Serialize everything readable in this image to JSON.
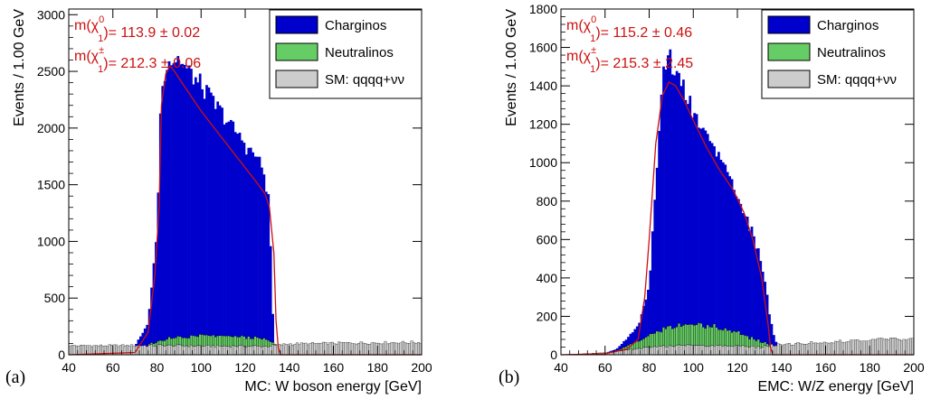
{
  "chart_data": [
    {
      "type": "histogram",
      "panel_label": "(a)",
      "xlabel": "MC: W boson energy [GeV]",
      "ylabel": "Events / 1.00 GeV",
      "xlim": [
        40,
        200
      ],
      "ylim": [
        0,
        3050
      ],
      "xticks": [
        40,
        60,
        80,
        100,
        120,
        140,
        160,
        180,
        200
      ],
      "yticks": [
        0,
        500,
        1000,
        1500,
        2000,
        2500,
        3000
      ],
      "legend_position": "top-right",
      "legend": [
        {
          "label": "Charginos",
          "color": "#0000cc"
        },
        {
          "label": "Neutralinos",
          "color": "#66cc66"
        },
        {
          "label": "SM: qqqq+νν",
          "color": "#cccccc"
        }
      ],
      "annotations": [
        {
          "prefix": "m(",
          "tilde": "χ",
          "sup": "0",
          "sub": "1",
          "value": ")= 113.9 ± 0.02"
        },
        {
          "prefix": "m(",
          "tilde": "χ",
          "sup": "±",
          "sub": "1",
          "value": ")= 212.3 ± 0.06"
        }
      ],
      "sm_profile": [
        [
          40,
          80
        ],
        [
          80,
          82
        ],
        [
          100,
          78
        ],
        [
          130,
          75
        ],
        [
          140,
          95
        ],
        [
          170,
          105
        ],
        [
          200,
          110
        ]
      ],
      "neutralino_profile": [
        [
          75,
          0
        ],
        [
          85,
          60
        ],
        [
          100,
          90
        ],
        [
          120,
          80
        ],
        [
          130,
          60
        ],
        [
          134,
          0
        ]
      ],
      "chargino_profile": [
        [
          70,
          0
        ],
        [
          76,
          200
        ],
        [
          80,
          1000
        ],
        [
          82,
          2300
        ],
        [
          85,
          2450
        ],
        [
          90,
          2450
        ],
        [
          100,
          2200
        ],
        [
          110,
          1950
        ],
        [
          120,
          1700
        ],
        [
          125,
          1600
        ],
        [
          128,
          1500
        ],
        [
          131,
          1200
        ],
        [
          132,
          500
        ],
        [
          133,
          0
        ]
      ],
      "fit_curve": [
        [
          40,
          0
        ],
        [
          70,
          20
        ],
        [
          76,
          200
        ],
        [
          79,
          700
        ],
        [
          81,
          1300
        ],
        [
          82,
          2200
        ],
        [
          84,
          2480
        ],
        [
          86,
          2550
        ],
        [
          88,
          2500
        ],
        [
          92,
          2380
        ],
        [
          100,
          2150
        ],
        [
          110,
          1900
        ],
        [
          120,
          1650
        ],
        [
          126,
          1500
        ],
        [
          129,
          1420
        ],
        [
          131,
          1300
        ],
        [
          133,
          900
        ],
        [
          134,
          300
        ],
        [
          135,
          60
        ],
        [
          136,
          0
        ],
        [
          200,
          0
        ]
      ]
    },
    {
      "type": "histogram",
      "panel_label": "(b)",
      "xlabel": "EMC: W/Z energy [GeV]",
      "ylabel": "Events / 1.00 GeV",
      "xlim": [
        40,
        200
      ],
      "ylim": [
        0,
        1800
      ],
      "xticks": [
        40,
        60,
        80,
        100,
        120,
        140,
        160,
        180,
        200
      ],
      "yticks": [
        0,
        200,
        400,
        600,
        800,
        1000,
        1200,
        1400,
        1600,
        1800
      ],
      "legend_position": "top-right",
      "legend": [
        {
          "label": "Charginos",
          "color": "#0000cc"
        },
        {
          "label": "Neutralinos",
          "color": "#66cc66"
        },
        {
          "label": "SM: qqqq+νν",
          "color": "#cccccc"
        }
      ],
      "annotations": [
        {
          "prefix": "m(",
          "tilde": "χ",
          "sup": "0",
          "sub": "1",
          "value": ")= 115.2 ± 0.46"
        },
        {
          "prefix": "m(",
          "tilde": "χ",
          "sup": "±",
          "sub": "1",
          "value": ")= 215.3 ± 2.45"
        }
      ],
      "sm_profile": [
        [
          40,
          0
        ],
        [
          60,
          10
        ],
        [
          70,
          25
        ],
        [
          80,
          40
        ],
        [
          100,
          50
        ],
        [
          120,
          45
        ],
        [
          130,
          40
        ],
        [
          140,
          55
        ],
        [
          160,
          65
        ],
        [
          180,
          80
        ],
        [
          200,
          80
        ]
      ],
      "neutralino_profile": [
        [
          65,
          0
        ],
        [
          80,
          60
        ],
        [
          90,
          100
        ],
        [
          100,
          110
        ],
        [
          110,
          100
        ],
        [
          120,
          70
        ],
        [
          130,
          30
        ],
        [
          136,
          0
        ]
      ],
      "chargino_profile": [
        [
          60,
          0
        ],
        [
          65,
          10
        ],
        [
          70,
          40
        ],
        [
          75,
          80
        ],
        [
          80,
          250
        ],
        [
          83,
          800
        ],
        [
          86,
          1300
        ],
        [
          88,
          1400
        ],
        [
          90,
          1380
        ],
        [
          95,
          1250
        ],
        [
          100,
          1100
        ],
        [
          105,
          1000
        ],
        [
          110,
          920
        ],
        [
          115,
          850
        ],
        [
          120,
          720
        ],
        [
          125,
          600
        ],
        [
          130,
          450
        ],
        [
          133,
          300
        ],
        [
          135,
          120
        ],
        [
          138,
          0
        ]
      ],
      "fit_curve": [
        [
          40,
          0
        ],
        [
          60,
          5
        ],
        [
          70,
          30
        ],
        [
          75,
          80
        ],
        [
          78,
          300
        ],
        [
          80,
          600
        ],
        [
          83,
          1100
        ],
        [
          86,
          1350
        ],
        [
          89,
          1420
        ],
        [
          92,
          1400
        ],
        [
          96,
          1320
        ],
        [
          100,
          1220
        ],
        [
          106,
          1080
        ],
        [
          112,
          960
        ],
        [
          118,
          860
        ],
        [
          123,
          740
        ],
        [
          127,
          600
        ],
        [
          131,
          400
        ],
        [
          134,
          150
        ],
        [
          135,
          40
        ],
        [
          136,
          0
        ],
        [
          200,
          0
        ]
      ]
    }
  ]
}
